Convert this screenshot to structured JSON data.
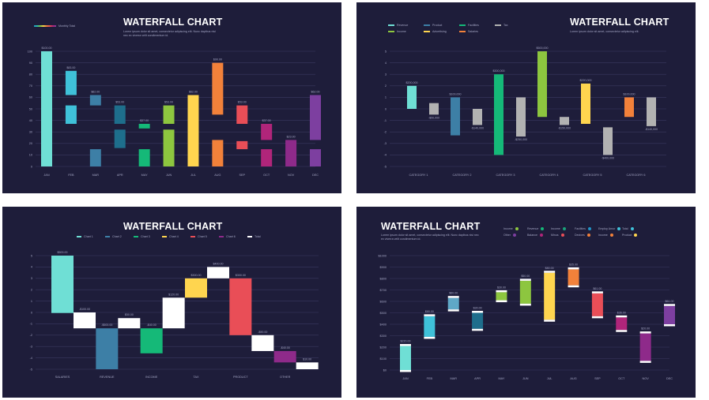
{
  "slides": [
    {
      "id": "p1",
      "title": "WATERFALL CHART",
      "subtitle": "Lorem ipsum dolor sit amet, consectetur adipiscing elit. Nunc dapibus nisi nec ex viverra velit condimentum id.",
      "legend": [
        {
          "label": "Monthly Total",
          "gradient": [
            "#2196c9",
            "#2bc0a8",
            "#8dc63f",
            "#ffd54f",
            "#f2813a",
            "#e94e57",
            "#b0257a",
            "#7d3fa0"
          ]
        }
      ]
    },
    {
      "id": "p2",
      "title": "WATERFALL CHART",
      "subtitle": "Lorem ipsum dolor sit amet, consectetur adipiscing elit.",
      "legend": [
        {
          "label": "Revenue",
          "color": "#6fdfd5"
        },
        {
          "label": "Product",
          "color": "#3d7fa6"
        },
        {
          "label": "Facilities",
          "color": "#15b978"
        },
        {
          "label": "Tax",
          "color": "#b2b2b2"
        },
        {
          "label": "Income",
          "color": "#8dc63f"
        },
        {
          "label": "Advertising",
          "color": "#ffd54f"
        },
        {
          "label": "Salaries",
          "color": "#f2813a"
        }
      ]
    },
    {
      "id": "p3",
      "title": "WATERFALL CHART",
      "subtitle": "",
      "legend": [
        {
          "label": "Chart 1",
          "color": "#6fdfd5"
        },
        {
          "label": "Chart 2",
          "color": "#3d7fa6"
        },
        {
          "label": "Chart 3",
          "color": "#15b978"
        },
        {
          "label": "Chart 4",
          "color": "#ffd54f"
        },
        {
          "label": "Chart 5",
          "color": "#e94e57"
        },
        {
          "label": "Chart 6",
          "color": "#8e2a8a"
        },
        {
          "label": "Total",
          "color": "#ffffff"
        }
      ]
    },
    {
      "id": "p4",
      "title": "WATERFALL CHART",
      "subtitle": "Lorem ipsum dolor sit amet, consectetur adipiscing elit. Nunc dapibus nisi nec ex viverra velit condimentum id.",
      "legend": [
        {
          "label": "Income",
          "color": "#8dc63f"
        },
        {
          "label": "Revenue",
          "color": "#15b978"
        },
        {
          "label": "Income",
          "color": "#1aa37a"
        },
        {
          "label": "Facilities",
          "color": "#2196c9"
        },
        {
          "label": "Employ Amor",
          "color": "#3fc1d9"
        },
        {
          "label": "Total",
          "color": "#3fc1d9"
        },
        {
          "label": "Other",
          "color": "#7d3fa0"
        },
        {
          "label": "Balance",
          "color": "#b0257a"
        },
        {
          "label": "Minus",
          "color": "#e94e57"
        },
        {
          "label": "Devices",
          "color": "#f2813a"
        },
        {
          "label": "Income",
          "color": "#f2813a"
        },
        {
          "label": "Product",
          "color": "#ffd54f"
        }
      ]
    }
  ],
  "chart_data": [
    {
      "type": "bar",
      "yticks": [
        "0",
        "10",
        "20",
        "30",
        "40",
        "50",
        "60",
        "70",
        "80",
        "90",
        "100"
      ],
      "ylim": [
        0,
        100
      ],
      "categories": [
        "JAN",
        "FEB",
        "MAR",
        "APR",
        "MAY",
        "JUN",
        "JUL",
        "AUG",
        "SEP",
        "OCT",
        "NOV",
        "DEC"
      ],
      "bars": [
        {
          "low": 0,
          "high": 100,
          "color": "#6fdfd5",
          "label": "$100.00",
          "split": null
        },
        {
          "low": 37,
          "high": 83,
          "color": "#3fc1d9",
          "label": "$83.00",
          "split": [
            53,
            62
          ]
        },
        {
          "low": 0,
          "high": 62,
          "color": "#3d7fa6",
          "label": "$62.00",
          "split": [
            15,
            53
          ]
        },
        {
          "low": 16,
          "high": 53,
          "color": "#1e6e8c",
          "label": "$53.00",
          "split": [
            32,
            37
          ]
        },
        {
          "low": 0,
          "high": 37,
          "color": "#15b978",
          "label": "$37.00",
          "split": [
            15,
            33
          ]
        },
        {
          "low": 0,
          "high": 53,
          "color": "#8dc63f",
          "label": "$53.00",
          "split": [
            32,
            37
          ]
        },
        {
          "low": 0,
          "high": 62,
          "color": "#ffd54f",
          "label": "$62.00",
          "split": null
        },
        {
          "low": 0,
          "high": 90,
          "color": "#f2813a",
          "label": "$90.00",
          "split": [
            23,
            45
          ]
        },
        {
          "low": 15,
          "high": 53,
          "color": "#e94e57",
          "label": "$53.00",
          "split": [
            22,
            37
          ]
        },
        {
          "low": 0,
          "high": 37,
          "color": "#b0257a",
          "label": "$37.00",
          "split": [
            15,
            23
          ]
        },
        {
          "low": 0,
          "high": 23,
          "color": "#8e2a8a",
          "label": "$23.00",
          "split": null
        },
        {
          "low": 0,
          "high": 62,
          "color": "#7d3fa0",
          "label": "$62.00",
          "split": [
            15,
            23
          ]
        }
      ]
    },
    {
      "type": "bar",
      "yticks": [
        "-5",
        "-4",
        "-3",
        "-2",
        "-1",
        "0",
        "1",
        "2",
        "3",
        "4",
        "5"
      ],
      "ylim": [
        -5,
        5
      ],
      "categories": [
        "CATEGORY 1",
        "CATEGORY 2",
        "CATEGORY 3",
        "CATEGORY 4",
        "CATEGORY 5",
        "CATEGORY 6"
      ],
      "bars": [
        {
          "group": 0,
          "low": 0,
          "high": 2,
          "color": "#6fdfd5",
          "label": "$200,000",
          "labelPos": "top"
        },
        {
          "group": 0,
          "low": -0.5,
          "high": 0.5,
          "color": "#b2b2b2",
          "label": "-$50,000",
          "labelPos": "bottom"
        },
        {
          "group": 1,
          "low": -2.3,
          "high": 1,
          "color": "#3d7fa6",
          "label": "$100,000",
          "labelPos": "top"
        },
        {
          "group": 1,
          "low": -1.4,
          "high": 0,
          "color": "#b2b2b2",
          "label": "-$140,000",
          "labelPos": "bottom"
        },
        {
          "group": 2,
          "low": -4,
          "high": 3,
          "color": "#15b978",
          "label": "$300,000",
          "labelPos": "top"
        },
        {
          "group": 2,
          "low": -2.4,
          "high": 1,
          "color": "#b2b2b2",
          "label": "-$250,000",
          "labelPos": "bottom"
        },
        {
          "group": 3,
          "low": -0.7,
          "high": 5,
          "color": "#8dc63f",
          "label": "$500,000",
          "labelPos": "top"
        },
        {
          "group": 3,
          "low": -1.4,
          "high": -0.7,
          "color": "#b2b2b2",
          "label": "-$150,000",
          "labelPos": "bottom"
        },
        {
          "group": 4,
          "low": -1.3,
          "high": 2.2,
          "color": "#ffd54f",
          "label": "$220,000",
          "labelPos": "top"
        },
        {
          "group": 4,
          "low": -4,
          "high": -1.6,
          "color": "#b2b2b2",
          "label": "-$400,000",
          "labelPos": "bottom"
        },
        {
          "group": 5,
          "low": -0.7,
          "high": 1,
          "color": "#f2813a",
          "label": "$100,000",
          "labelPos": "top"
        },
        {
          "group": 5,
          "low": -1.5,
          "high": 1,
          "color": "#b2b2b2",
          "label": "-$140,000",
          "labelPos": "bottom"
        }
      ]
    },
    {
      "type": "bar",
      "yticks": [
        "-5",
        "-4",
        "-3",
        "-2",
        "-1",
        "0",
        "1",
        "2",
        "3",
        "4",
        "5"
      ],
      "ylim": [
        -5,
        5
      ],
      "categories": [
        "SALARIES",
        "REVENUE",
        "INCOME",
        "TAX",
        "PRODUCT",
        "OTHER"
      ],
      "bars": [
        {
          "group": 0,
          "low": -0.05,
          "high": 5,
          "color": "#6fdfd5",
          "label": "$500.00"
        },
        {
          "group": 0,
          "low": -1.4,
          "high": 0,
          "color": "#ffffff",
          "label": "-$100.00"
        },
        {
          "group": 1,
          "low": -5,
          "high": -1.4,
          "color": "#3d7fa6",
          "label": "-$500.00"
        },
        {
          "group": 1,
          "low": -1.4,
          "high": -0.5,
          "color": "#ffffff",
          "label": "$50.00"
        },
        {
          "group": 2,
          "low": -3.6,
          "high": -1.4,
          "color": "#15b978",
          "label": "-$40.00"
        },
        {
          "group": 2,
          "low": -1.4,
          "high": 1.3,
          "color": "#ffffff",
          "label": "$120.00"
        },
        {
          "group": 3,
          "low": 1.3,
          "high": 3,
          "color": "#ffd54f",
          "label": "$300.00"
        },
        {
          "group": 3,
          "low": 3,
          "high": 4,
          "color": "#ffffff",
          "label": "$400.00"
        },
        {
          "group": 4,
          "low": -2,
          "high": 3,
          "color": "#e94e57",
          "label": "$300.00"
        },
        {
          "group": 4,
          "low": -3.4,
          "high": -2,
          "color": "#ffffff",
          "label": "-$90.00"
        },
        {
          "group": 5,
          "low": -4.4,
          "high": -3.4,
          "color": "#8e2a8a",
          "label": "-$40.00"
        },
        {
          "group": 5,
          "low": -5,
          "high": -4.4,
          "color": "#ffffff",
          "label": "$10.00"
        }
      ]
    },
    {
      "type": "bar",
      "yticks": [
        "$0",
        "$100",
        "$200",
        "$300",
        "$400",
        "$500",
        "$600",
        "$700",
        "$800",
        "$900",
        "$1000"
      ],
      "ylim": [
        0,
        1000
      ],
      "categories": [
        "JAN",
        "FEB",
        "MAR",
        "APR",
        "MAY",
        "JUN",
        "JUL",
        "AUG",
        "SEP",
        "OCT",
        "NOV",
        "DEC"
      ],
      "bars": [
        {
          "low": 0,
          "high": 210,
          "color": "#6fdfd5",
          "cap": 40,
          "label": "$220.00"
        },
        {
          "low": 290,
          "high": 470,
          "color": "#3fc1d9",
          "cap": 40,
          "label": "$80.00"
        },
        {
          "low": 530,
          "high": 630,
          "color": "#5fa8c7",
          "cap": 30,
          "label": "$60.00"
        },
        {
          "low": 360,
          "high": 500,
          "color": "#1e6e8c",
          "cap": 30,
          "label": "$30.00"
        },
        {
          "low": 610,
          "high": 680,
          "color": "#8dc63f",
          "cap": 30,
          "label": "$30.00"
        },
        {
          "low": 580,
          "high": 780,
          "color": "#8dc63f",
          "cap": 30,
          "label": "$50.00"
        },
        {
          "low": 440,
          "high": 850,
          "color": "#ffd54f",
          "cap": 40,
          "label": "$80.00"
        },
        {
          "low": 740,
          "high": 880,
          "color": "#f2813a",
          "cap": 30,
          "label": "$35.00"
        },
        {
          "low": 470,
          "high": 670,
          "color": "#e94e57",
          "cap": 30,
          "label": "$61.00"
        },
        {
          "low": 350,
          "high": 460,
          "color": "#b0257a",
          "cap": 30,
          "label": "$36.00"
        },
        {
          "low": 80,
          "high": 320,
          "color": "#8e2a8a",
          "cap": 40,
          "label": "$20.00"
        },
        {
          "low": 400,
          "high": 560,
          "color": "#7d3fa0",
          "cap": 30,
          "label": "$61.00"
        }
      ]
    }
  ]
}
